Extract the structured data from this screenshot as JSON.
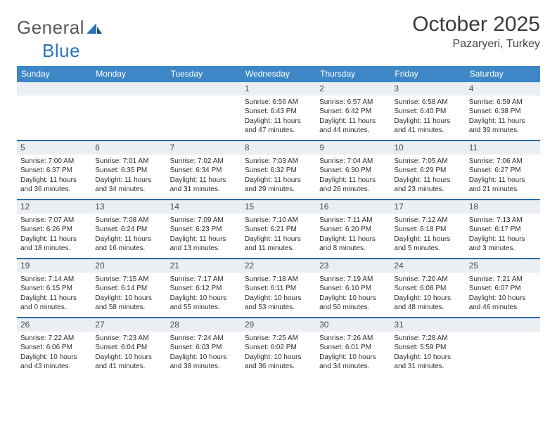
{
  "logo": {
    "text_gray": "General",
    "text_blue": "Blue"
  },
  "title": "October 2025",
  "location": "Pazaryeri, Turkey",
  "colors": {
    "header_bg": "#3d87c7",
    "header_text": "#ffffff",
    "daynum_bg": "#ebeff3",
    "row_border": "#2e6ca8",
    "body_text": "#2f2f2f"
  },
  "days_of_week": [
    "Sunday",
    "Monday",
    "Tuesday",
    "Wednesday",
    "Thursday",
    "Friday",
    "Saturday"
  ],
  "weeks": [
    [
      {
        "n": "",
        "empty": true
      },
      {
        "n": "",
        "empty": true
      },
      {
        "n": "",
        "empty": true
      },
      {
        "n": "1",
        "sunrise": "6:56 AM",
        "sunset": "6:43 PM",
        "dl_h": "11",
        "dl_m": "47"
      },
      {
        "n": "2",
        "sunrise": "6:57 AM",
        "sunset": "6:42 PM",
        "dl_h": "11",
        "dl_m": "44"
      },
      {
        "n": "3",
        "sunrise": "6:58 AM",
        "sunset": "6:40 PM",
        "dl_h": "11",
        "dl_m": "41"
      },
      {
        "n": "4",
        "sunrise": "6:59 AM",
        "sunset": "6:38 PM",
        "dl_h": "11",
        "dl_m": "39"
      }
    ],
    [
      {
        "n": "5",
        "sunrise": "7:00 AM",
        "sunset": "6:37 PM",
        "dl_h": "11",
        "dl_m": "36"
      },
      {
        "n": "6",
        "sunrise": "7:01 AM",
        "sunset": "6:35 PM",
        "dl_h": "11",
        "dl_m": "34"
      },
      {
        "n": "7",
        "sunrise": "7:02 AM",
        "sunset": "6:34 PM",
        "dl_h": "11",
        "dl_m": "31"
      },
      {
        "n": "8",
        "sunrise": "7:03 AM",
        "sunset": "6:32 PM",
        "dl_h": "11",
        "dl_m": "29"
      },
      {
        "n": "9",
        "sunrise": "7:04 AM",
        "sunset": "6:30 PM",
        "dl_h": "11",
        "dl_m": "26"
      },
      {
        "n": "10",
        "sunrise": "7:05 AM",
        "sunset": "6:29 PM",
        "dl_h": "11",
        "dl_m": "23"
      },
      {
        "n": "11",
        "sunrise": "7:06 AM",
        "sunset": "6:27 PM",
        "dl_h": "11",
        "dl_m": "21"
      }
    ],
    [
      {
        "n": "12",
        "sunrise": "7:07 AM",
        "sunset": "6:26 PM",
        "dl_h": "11",
        "dl_m": "18"
      },
      {
        "n": "13",
        "sunrise": "7:08 AM",
        "sunset": "6:24 PM",
        "dl_h": "11",
        "dl_m": "16"
      },
      {
        "n": "14",
        "sunrise": "7:09 AM",
        "sunset": "6:23 PM",
        "dl_h": "11",
        "dl_m": "13"
      },
      {
        "n": "15",
        "sunrise": "7:10 AM",
        "sunset": "6:21 PM",
        "dl_h": "11",
        "dl_m": "11"
      },
      {
        "n": "16",
        "sunrise": "7:11 AM",
        "sunset": "6:20 PM",
        "dl_h": "11",
        "dl_m": "8"
      },
      {
        "n": "17",
        "sunrise": "7:12 AM",
        "sunset": "6:18 PM",
        "dl_h": "11",
        "dl_m": "5"
      },
      {
        "n": "18",
        "sunrise": "7:13 AM",
        "sunset": "6:17 PM",
        "dl_h": "11",
        "dl_m": "3"
      }
    ],
    [
      {
        "n": "19",
        "sunrise": "7:14 AM",
        "sunset": "6:15 PM",
        "dl_h": "11",
        "dl_m": "0"
      },
      {
        "n": "20",
        "sunrise": "7:15 AM",
        "sunset": "6:14 PM",
        "dl_h": "10",
        "dl_m": "58"
      },
      {
        "n": "21",
        "sunrise": "7:17 AM",
        "sunset": "6:12 PM",
        "dl_h": "10",
        "dl_m": "55"
      },
      {
        "n": "22",
        "sunrise": "7:18 AM",
        "sunset": "6:11 PM",
        "dl_h": "10",
        "dl_m": "53"
      },
      {
        "n": "23",
        "sunrise": "7:19 AM",
        "sunset": "6:10 PM",
        "dl_h": "10",
        "dl_m": "50"
      },
      {
        "n": "24",
        "sunrise": "7:20 AM",
        "sunset": "6:08 PM",
        "dl_h": "10",
        "dl_m": "48"
      },
      {
        "n": "25",
        "sunrise": "7:21 AM",
        "sunset": "6:07 PM",
        "dl_h": "10",
        "dl_m": "46"
      }
    ],
    [
      {
        "n": "26",
        "sunrise": "7:22 AM",
        "sunset": "6:06 PM",
        "dl_h": "10",
        "dl_m": "43"
      },
      {
        "n": "27",
        "sunrise": "7:23 AM",
        "sunset": "6:04 PM",
        "dl_h": "10",
        "dl_m": "41"
      },
      {
        "n": "28",
        "sunrise": "7:24 AM",
        "sunset": "6:03 PM",
        "dl_h": "10",
        "dl_m": "38"
      },
      {
        "n": "29",
        "sunrise": "7:25 AM",
        "sunset": "6:02 PM",
        "dl_h": "10",
        "dl_m": "36"
      },
      {
        "n": "30",
        "sunrise": "7:26 AM",
        "sunset": "6:01 PM",
        "dl_h": "10",
        "dl_m": "34"
      },
      {
        "n": "31",
        "sunrise": "7:28 AM",
        "sunset": "5:59 PM",
        "dl_h": "10",
        "dl_m": "31"
      },
      {
        "n": "",
        "empty": true
      }
    ]
  ],
  "labels": {
    "sunrise": "Sunrise:",
    "sunset": "Sunset:",
    "daylight_prefix": "Daylight:",
    "hours_word": "hours",
    "and_word": "and",
    "minutes_word": "minutes."
  }
}
